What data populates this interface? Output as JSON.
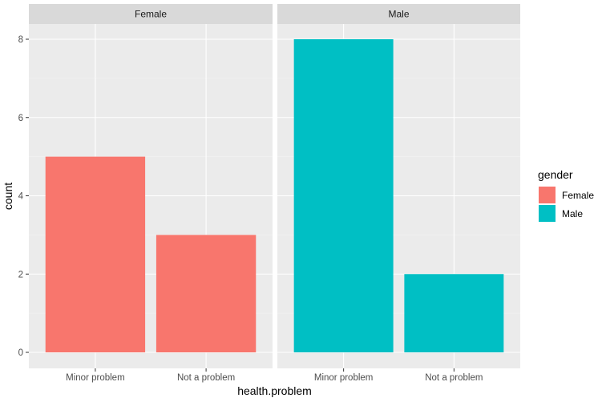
{
  "chart_data": {
    "type": "bar",
    "xlabel": "health.problem",
    "ylabel": "count",
    "categories": [
      "Minor problem",
      "Not a problem"
    ],
    "ylim": [
      0,
      8.4
    ],
    "yticks": [
      0,
      2,
      4,
      6,
      8
    ],
    "grid": true,
    "facets": [
      {
        "name": "Female",
        "values": [
          5,
          3
        ],
        "color": "#F8766D"
      },
      {
        "name": "Male",
        "values": [
          8,
          2
        ],
        "color": "#00BFC4"
      }
    ],
    "legend": {
      "title": "gender",
      "position": "right",
      "items": [
        {
          "label": "Female",
          "color": "#F8766D"
        },
        {
          "label": "Male",
          "color": "#00BFC4"
        }
      ]
    }
  },
  "colors": {
    "panel_background": "#EBEBEB",
    "strip_background": "#D9D9D9",
    "grid_major": "#FFFFFF",
    "tick_color": "#333333"
  }
}
